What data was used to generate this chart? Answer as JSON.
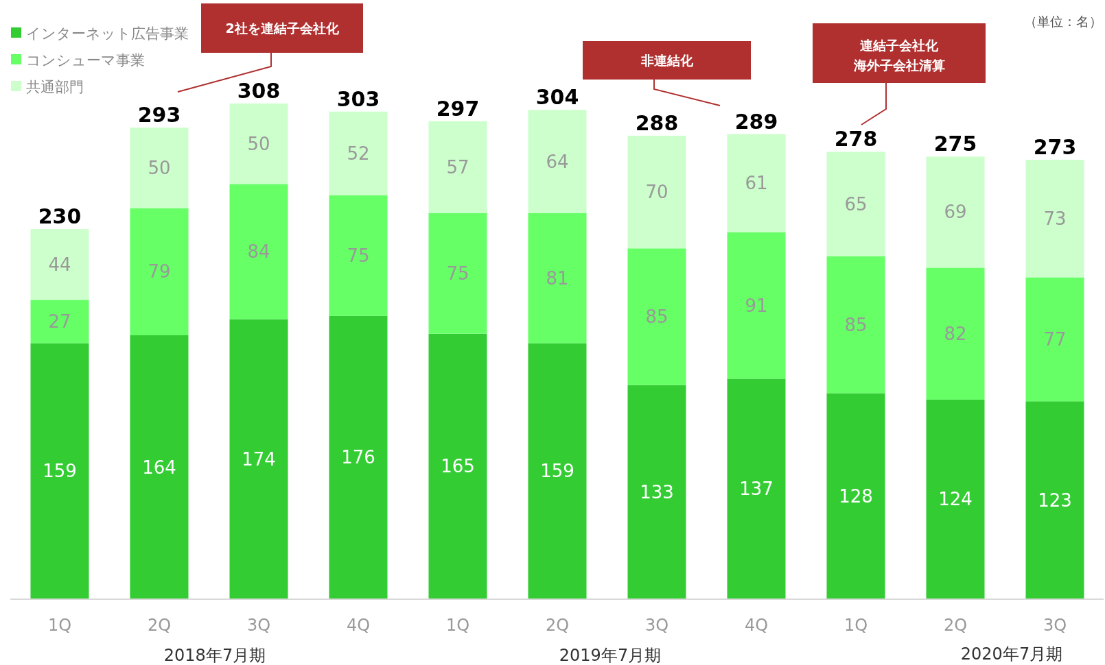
{
  "chart_data": {
    "type": "bar",
    "stacked": true,
    "data_labels": true,
    "legend": "top left",
    "categories": [
      "1Q",
      "2Q",
      "3Q",
      "4Q",
      "1Q",
      "2Q",
      "3Q",
      "4Q",
      "1Q",
      "2Q",
      "3Q"
    ],
    "series": [
      {
        "name": "インターネット広告事業",
        "color": "#33cc33",
        "values": [
          159,
          164,
          174,
          176,
          165,
          159,
          133,
          137,
          128,
          124,
          123
        ]
      },
      {
        "name": "コンシューマ事業",
        "color": "#66ff66",
        "values": [
          27,
          79,
          84,
          75,
          75,
          81,
          85,
          91,
          85,
          82,
          77
        ]
      },
      {
        "name": "共通部門",
        "color": "#ccffcc",
        "values": [
          44,
          50,
          50,
          52,
          57,
          64,
          70,
          61,
          65,
          69,
          73
        ]
      }
    ],
    "totals": [
      "230",
      "293",
      "308",
      "303",
      "297",
      "304",
      "288",
      "289",
      "278",
      "275",
      "273"
    ],
    "annotations": [
      "（単位：名）",
      "2社を連結子会社化",
      "非連結化",
      "連結子会社化",
      "海外子会社清算",
      "2018年7月期",
      "2019年7月期",
      "2020年7月期"
    ]
  }
}
